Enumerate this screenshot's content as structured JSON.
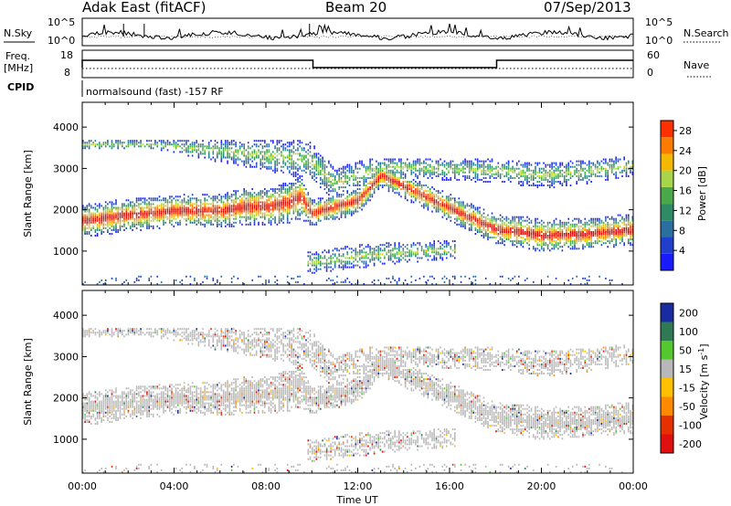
{
  "header": {
    "station": "Adak East (fitACF)",
    "beam": "Beam 20",
    "date": "07/Sep/2013"
  },
  "noise_panel": {
    "left_label": "N.Sky",
    "right_label": "N.Search",
    "left_ticks": [
      "10^5",
      "10^0"
    ],
    "right_ticks": [
      "10^5",
      "10^0"
    ]
  },
  "freq_panel": {
    "left_label_1": "Freq.",
    "left_label_2": "[MHz]",
    "right_label": "Nave",
    "left_ticks": [
      "18",
      "8"
    ],
    "right_ticks": [
      "60",
      "0"
    ]
  },
  "cpid": {
    "label": "CPID",
    "text": "normalsound (fast) -157 RF"
  },
  "time_axis": {
    "label": "Time UT",
    "ticks": [
      "00:00",
      "04:00",
      "08:00",
      "12:00",
      "16:00",
      "20:00",
      "00:00"
    ]
  },
  "colors": {
    "power": [
      "#1a1aff",
      "#1f3fcc",
      "#2b6fa0",
      "#2f8a66",
      "#4aa84a",
      "#a8d64a",
      "#f5b800",
      "#ff7a00",
      "#ff3000",
      "#e00000"
    ],
    "velocity": [
      "#1a2aa0",
      "#2f7a55",
      "#55c830",
      "#b8b8b8",
      "#ffc000",
      "#ff8a00",
      "#e63000",
      "#e01010"
    ],
    "ground_scatter": "#b8b8b8"
  },
  "chart_data": [
    {
      "type": "heatmap",
      "title": "",
      "xlabel": "Time UT",
      "ylabel": "Slant Range [km]",
      "xlim": [
        0,
        24
      ],
      "ylim": [
        180,
        4600
      ],
      "yticks": [
        1000,
        2000,
        3000,
        4000
      ],
      "colorbar": {
        "label": "Power [dB]",
        "ticks": [
          4,
          8,
          12,
          16,
          20,
          24,
          28
        ],
        "range": [
          0,
          30
        ]
      },
      "echo_bands": [
        {
          "name": "main",
          "x": [
            0.0,
            2.0,
            4.0,
            6.0,
            7.0,
            8.0,
            9.0,
            9.5,
            10.0,
            12.0,
            13.0,
            18.0,
            19.0,
            20.0,
            22.0,
            24.0
          ],
          "center_km": [
            1700,
            1850,
            1950,
            1950,
            2050,
            2050,
            2150,
            2300,
            1900,
            2200,
            2800,
            1500,
            1450,
            1350,
            1400,
            1500
          ],
          "width_km": [
            250,
            250,
            240,
            260,
            280,
            280,
            320,
            350,
            200,
            200,
            180,
            220,
            240,
            250,
            240,
            240
          ]
        },
        {
          "name": "upper",
          "x": [
            0.0,
            1.5,
            3.2,
            9.8,
            11.0,
            12.5,
            13.5,
            18.5,
            20.0,
            22.0,
            24.0
          ],
          "center_km": [
            3550,
            3550,
            3550,
            3200,
            2600,
            2900,
            3000,
            2900,
            2800,
            2900,
            3050
          ],
          "width_km": [
            80,
            80,
            80,
            300,
            250,
            200,
            150,
            180,
            200,
            180,
            150
          ]
        },
        {
          "name": "lower",
          "x": [
            10.0,
            12.0,
            14.0,
            16.0
          ],
          "center_km": [
            700,
            850,
            950,
            1000
          ],
          "width_km": [
            160,
            180,
            160,
            140
          ]
        }
      ]
    },
    {
      "type": "heatmap",
      "title": "",
      "xlabel": "Time UT",
      "ylabel": "Slant Range [km]",
      "xlim": [
        0,
        24
      ],
      "ylim": [
        180,
        4600
      ],
      "yticks": [
        1000,
        2000,
        3000,
        4000
      ],
      "colorbar": {
        "label": "Velocity [m s^-1]",
        "ticks": [
          200,
          100,
          50,
          15,
          -15,
          -50,
          -100,
          -200
        ],
        "range": [
          -250,
          250
        ]
      },
      "ground_scatter_color": "gray",
      "dominant_velocity_m_s": 0
    }
  ]
}
